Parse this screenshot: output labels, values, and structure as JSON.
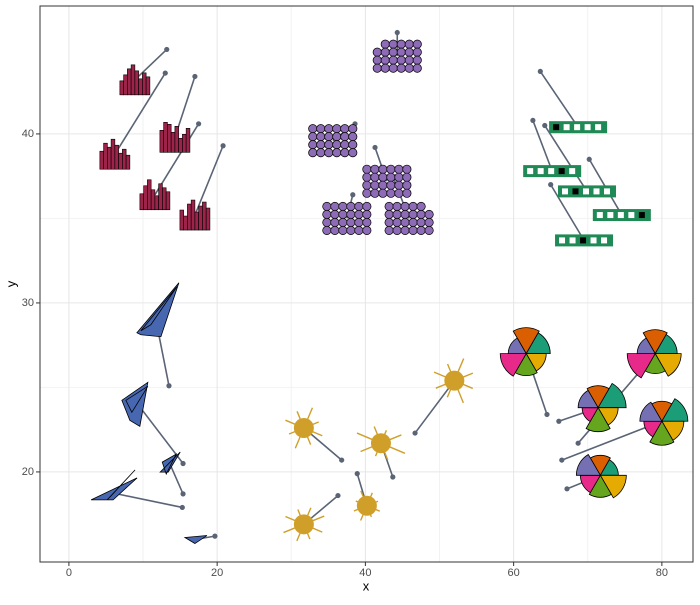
{
  "chart_data": {
    "type": "glyph-scatter",
    "x_label": "x",
    "y_label": "y",
    "xlim": [
      -3.9,
      84.2
    ],
    "ylim": [
      14.67,
      47.57
    ],
    "xticks": [
      0,
      20,
      40,
      60,
      80
    ],
    "yticks": [
      20,
      30,
      40
    ],
    "grid": true,
    "minor_grid": true,
    "pointer_color": "#5a6475",
    "series": [
      {
        "glyph": "bars",
        "color": "#9c2349",
        "x": [
          13.2,
          17.0,
          13.0,
          17.5,
          20.8
        ],
        "y": [
          45.0,
          43.4,
          43.6,
          40.6,
          39.3
        ],
        "glyph_x": [
          8.9,
          14.3,
          6.2,
          11.6,
          17.0
        ],
        "glyph_y": [
          43.2,
          39.8,
          38.8,
          36.4,
          35.2
        ]
      },
      {
        "glyph": "dots",
        "color": "#8e6bb6",
        "x": [
          44.3,
          38.6,
          41.3,
          38.3,
          43.7
        ],
        "y": [
          46.0,
          40.6,
          39.2,
          36.4,
          37.5
        ],
        "glyph_x": [
          44.3,
          35.6,
          42.9,
          37.5,
          45.9
        ],
        "glyph_y": [
          44.6,
          39.6,
          37.2,
          35.0,
          35.0
        ]
      },
      {
        "glyph": "cells",
        "color": "#1f8a55",
        "x": [
          63.6,
          62.6,
          64.2,
          70.2,
          65.0
        ],
        "y": [
          43.7,
          40.8,
          40.5,
          38.5,
          37.0
        ],
        "glyph_x": [
          68.7,
          65.2,
          69.9,
          74.6,
          69.5
        ],
        "glyph_y": [
          40.4,
          37.8,
          36.6,
          35.2,
          33.7
        ]
      },
      {
        "glyph": "shards",
        "color": "#4767b0",
        "x": [
          13.5,
          15.4,
          15.4,
          15.3,
          19.7
        ],
        "y": [
          25.1,
          20.5,
          18.7,
          17.9,
          16.2
        ],
        "glyph_x": [
          11.6,
          9.3,
          13.4,
          6.5,
          17.0
        ],
        "glyph_y": [
          29.3,
          24.0,
          20.7,
          18.7,
          16.0
        ]
      },
      {
        "glyph": "suns",
        "color": "#d09f2a",
        "x": [
          36.8,
          43.7,
          46.7,
          38.9,
          36.3
        ],
        "y": [
          20.7,
          19.7,
          22.3,
          19.9,
          18.6
        ],
        "glyph_x": [
          31.7,
          42.1,
          52.0,
          40.2,
          31.7
        ],
        "glyph_y": [
          22.6,
          21.7,
          25.4,
          18.0,
          16.9
        ]
      },
      {
        "glyph": "pies",
        "color": "#5a6475",
        "x": [
          64.5,
          66.1,
          68.7,
          66.5,
          67.2
        ],
        "y": [
          23.4,
          23.0,
          21.7,
          20.7,
          19.0
        ],
        "glyph_x": [
          61.7,
          71.4,
          79.1,
          80.0,
          71.7
        ],
        "glyph_y": [
          27.0,
          23.8,
          27.0,
          23.0,
          19.8
        ]
      }
    ]
  }
}
